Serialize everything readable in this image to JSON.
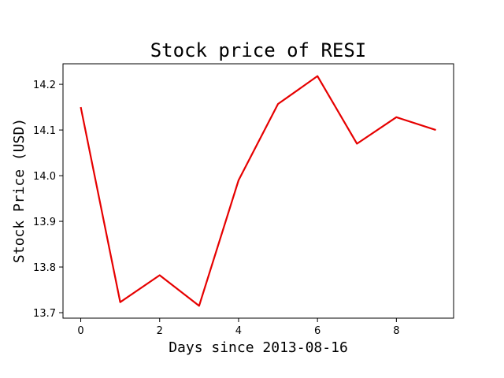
{
  "chart_data": {
    "type": "line",
    "title": "Stock price of RESI",
    "xlabel": "Days since 2013-08-16",
    "ylabel": "Stock Price (USD)",
    "x": [
      0,
      1,
      2,
      3,
      4,
      5,
      6,
      7,
      8,
      9
    ],
    "series": [
      {
        "values": [
          14.15,
          13.723,
          13.782,
          13.715,
          13.99,
          14.157,
          14.218,
          14.07,
          14.128,
          14.1
        ],
        "color": "#e60000"
      }
    ],
    "xlim": [
      -0.45,
      9.45
    ],
    "ylim": [
      13.688,
      14.245
    ],
    "xticks": [
      0,
      2,
      4,
      6,
      8
    ],
    "xtick_labels": [
      "0",
      "2",
      "4",
      "6",
      "8"
    ],
    "yticks": [
      13.7,
      13.8,
      13.9,
      14.0,
      14.1,
      14.2
    ],
    "ytick_labels": [
      "13.7",
      "13.8",
      "13.9",
      "14.0",
      "14.1",
      "14.2"
    ],
    "grid": false,
    "legend": false
  }
}
